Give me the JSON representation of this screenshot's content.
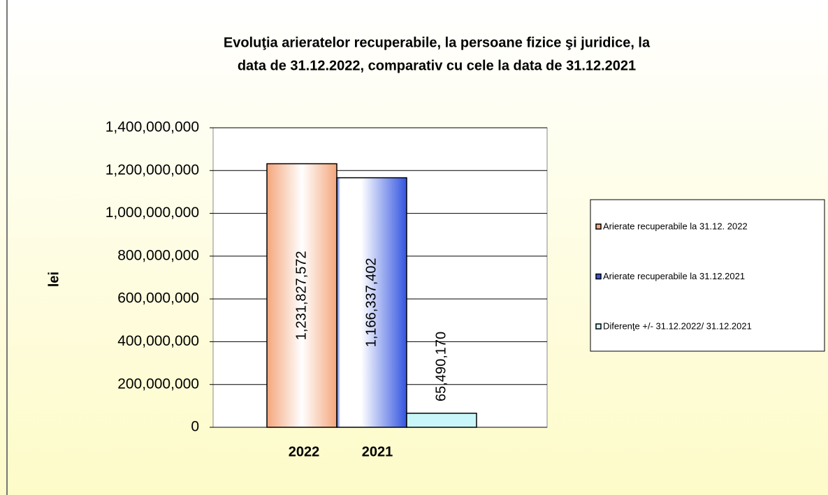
{
  "chart_data": {
    "type": "bar",
    "title": "Evoluţia arieratelor recuperabile, la persoane fizice şi juridice, la data de 31.12.2022, comparativ cu cele la data de 31.12.2021",
    "title_lines": [
      "Evoluţia arieratelor recuperabile, la persoane fizice şi juridice, la",
      "data de 31.12.2022, comparativ cu cele la data de 31.12.2021"
    ],
    "y_label": "lei",
    "categories": [
      "2022",
      "2021",
      null
    ],
    "values": [
      1231827572,
      1166337402,
      65490170
    ],
    "value_labels": [
      "1,231,827,572",
      "1,166,337,402",
      "65,490,170"
    ],
    "colors": [
      "#f4a67c",
      "#3355e0",
      "#c8f6f9"
    ],
    "legend": [
      "Arierate recuperabile la  31.12. 2022",
      "Arierate recuperabile la  31.12.2021",
      "Diferenţe +/- 31.12.2022/ 31.12.2021"
    ],
    "ylim": [
      0,
      1400000000
    ],
    "yticks": [
      0,
      {
        "value": 200000000,
        "label": "200,000,000"
      },
      {
        "value": 400000000,
        "label": "400,000,000"
      },
      {
        "value": 600000000,
        "label": "600,000,000"
      },
      {
        "value": 800000000,
        "label": "800,000,000"
      },
      {
        "value": 1000000000,
        "label": "1,000,000,000"
      },
      {
        "value": 1200000000,
        "label": "1,200,000,000"
      },
      {
        "value": 1400000000,
        "label": "1,400,000,000"
      }
    ],
    "grid": true
  }
}
